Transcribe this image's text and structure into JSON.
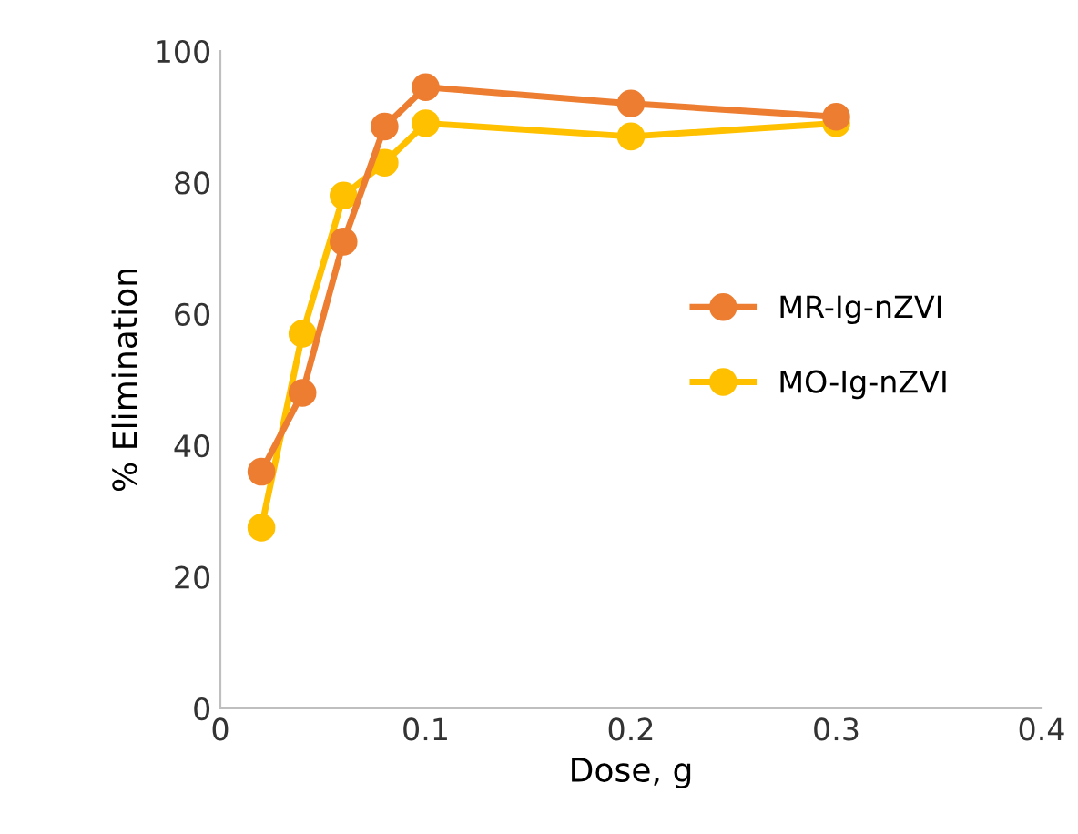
{
  "chart_data": {
    "type": "line",
    "xlabel": "Dose, g",
    "ylabel": "% Elimination",
    "x": [
      0.02,
      0.04,
      0.06,
      0.08,
      0.1,
      0.2,
      0.3
    ],
    "series": [
      {
        "name": "MR-Ig-nZVI",
        "color": "#ed7d31",
        "values": [
          36,
          48,
          71,
          88.5,
          94.5,
          92,
          90
        ]
      },
      {
        "name": "MO-Ig-nZVI",
        "color": "#ffc000",
        "values": [
          27.5,
          57,
          78,
          83,
          89,
          87,
          89
        ]
      }
    ],
    "xlim": [
      0,
      0.4
    ],
    "xticks": [
      0,
      0.1,
      0.2,
      0.3,
      0.4
    ],
    "ylim": [
      0,
      100
    ],
    "yticks": [
      0,
      20,
      40,
      60,
      80,
      100
    ],
    "grid": false,
    "legend": "right",
    "marker": "circle",
    "line_style": "solid"
  }
}
